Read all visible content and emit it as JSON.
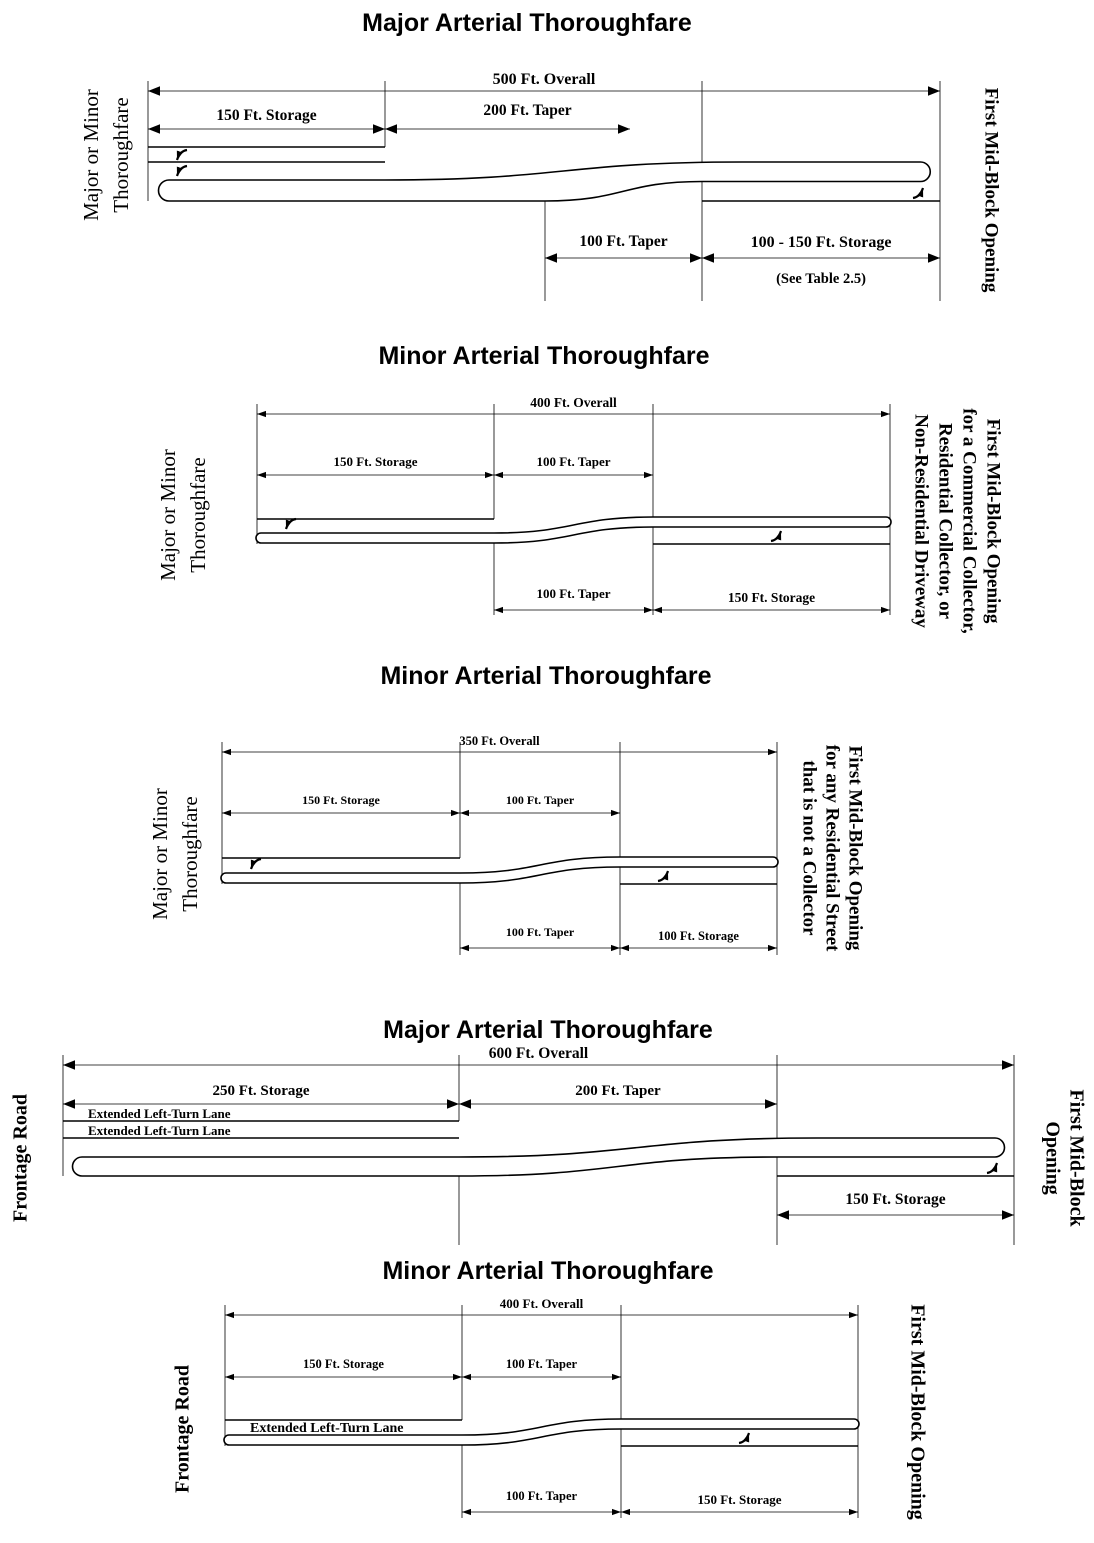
{
  "diagrams": [
    {
      "title": "Major Arterial Thoroughfare",
      "cross_street": [
        "Major or Minor",
        "Thoroughfare"
      ],
      "opening": [
        "First Mid-Block Opening"
      ],
      "overall": "500 Ft. Overall",
      "upper_storage": "150 Ft. Storage",
      "upper_taper": "200 Ft. Taper",
      "lower_taper": "100 Ft. Taper",
      "lower_storage": "100 - 150 Ft. Storage",
      "lower_note": "(See Table 2.5)"
    },
    {
      "title": "Minor Arterial Thoroughfare",
      "cross_street": [
        "Major or Minor",
        "Thoroughfare"
      ],
      "opening": [
        "First Mid-Block Opening",
        "for a Commercial Collector,",
        "Residential Collector, or",
        "Non-Residential Driveway"
      ],
      "overall": "400 Ft. Overall",
      "upper_storage": "150 Ft. Storage",
      "upper_taper": "100 Ft. Taper",
      "lower_taper": "100 Ft. Taper",
      "lower_storage": "150 Ft. Storage"
    },
    {
      "title": "Minor Arterial Thoroughfare",
      "cross_street": [
        "Major or Minor",
        "Thoroughfare"
      ],
      "opening": [
        "First Mid-Block Opening",
        "for any Residential Street",
        "that is not a Collector"
      ],
      "overall": "350 Ft. Overall",
      "upper_storage": "150 Ft. Storage",
      "upper_taper": "100 Ft. Taper",
      "lower_taper": "100 Ft. Taper",
      "lower_storage": "100 Ft. Storage"
    },
    {
      "title": "Major Arterial Thoroughfare",
      "cross_street": [
        "Frontage Road"
      ],
      "opening": [
        "First Mid-Block",
        "Opening"
      ],
      "overall": "600 Ft. Overall",
      "upper_storage": "250 Ft. Storage",
      "upper_taper": "200 Ft. Taper",
      "lane_labels": [
        "Extended Left-Turn Lane",
        "Extended Left-Turn Lane"
      ],
      "lower_storage": "150 Ft. Storage"
    },
    {
      "title": "Minor Arterial Thoroughfare",
      "cross_street": [
        "Frontage Road"
      ],
      "opening": [
        "First Mid-Block Opening"
      ],
      "overall": "400 Ft. Overall",
      "upper_storage": "150 Ft. Storage",
      "upper_taper": "100 Ft. Taper",
      "lane_labels": [
        "Extended Left-Turn Lane"
      ],
      "lower_taper": "100 Ft. Taper",
      "lower_storage": "150 Ft. Storage"
    }
  ]
}
